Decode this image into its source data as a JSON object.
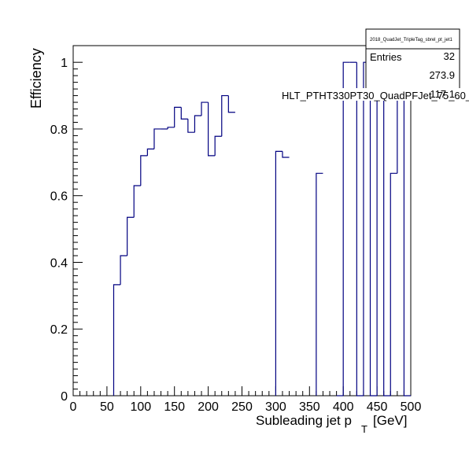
{
  "chart_data": {
    "type": "step",
    "xlabel_main": "Subleading jet p",
    "xlabel_sub": "T",
    "xlabel_unit": "[GeV]",
    "ylabel": "Efficiency",
    "xlim": [
      0,
      500
    ],
    "ylim": [
      0,
      1.05
    ],
    "x_ticks": [
      0,
      50,
      100,
      150,
      200,
      250,
      300,
      350,
      400,
      450,
      500
    ],
    "x_tick_labels": [
      "0",
      "50",
      "100",
      "150",
      "200",
      "250",
      "300",
      "350",
      "400",
      "450",
      "500"
    ],
    "y_ticks": [
      0,
      0.2,
      0.4,
      0.6,
      0.8,
      1
    ],
    "y_tick_labels": [
      "0",
      "0.2",
      "0.4",
      "0.6",
      "0.8",
      "1"
    ],
    "bin_width": 10,
    "bins": [
      {
        "x": 60,
        "y": 0.333
      },
      {
        "x": 70,
        "y": 0.42
      },
      {
        "x": 80,
        "y": 0.535
      },
      {
        "x": 90,
        "y": 0.63
      },
      {
        "x": 100,
        "y": 0.72
      },
      {
        "x": 110,
        "y": 0.74
      },
      {
        "x": 120,
        "y": 0.8
      },
      {
        "x": 130,
        "y": 0.8
      },
      {
        "x": 140,
        "y": 0.805
      },
      {
        "x": 150,
        "y": 0.865
      },
      {
        "x": 160,
        "y": 0.83
      },
      {
        "x": 170,
        "y": 0.79
      },
      {
        "x": 180,
        "y": 0.84
      },
      {
        "x": 190,
        "y": 0.88
      },
      {
        "x": 200,
        "y": 0.72
      },
      {
        "x": 210,
        "y": 0.778
      },
      {
        "x": 220,
        "y": 0.9
      },
      {
        "x": 230,
        "y": 0.85
      },
      {
        "x": 300,
        "y": 0.733
      },
      {
        "x": 310,
        "y": 0.715
      },
      {
        "x": 360,
        "y": 0.667
      },
      {
        "x": 390,
        "y": 0.0
      },
      {
        "x": 400,
        "y": 1.0
      },
      {
        "x": 410,
        "y": 1.0
      },
      {
        "x": 420,
        "y": 0.0
      },
      {
        "x": 430,
        "y": 1.0
      },
      {
        "x": 440,
        "y": 0.0
      },
      {
        "x": 450,
        "y": 1.0
      },
      {
        "x": 460,
        "y": 0.0
      },
      {
        "x": 470,
        "y": 0.667
      },
      {
        "x": 480,
        "y": 1.0
      },
      {
        "x": 490,
        "y": 0.0
      }
    ],
    "line_color": "#000080",
    "stats_box": {
      "title": "2018_QuadJet_TripleTag_sbrel_pt_jet1",
      "rows": [
        {
          "label": "Entries",
          "value": "32"
        },
        {
          "label": "",
          "value": "273.9"
        },
        {
          "label": "",
          "value": "117.1"
        }
      ]
    },
    "overlay_label": "HLT_PTHT330PT30_QuadPFJet_75_60_"
  }
}
